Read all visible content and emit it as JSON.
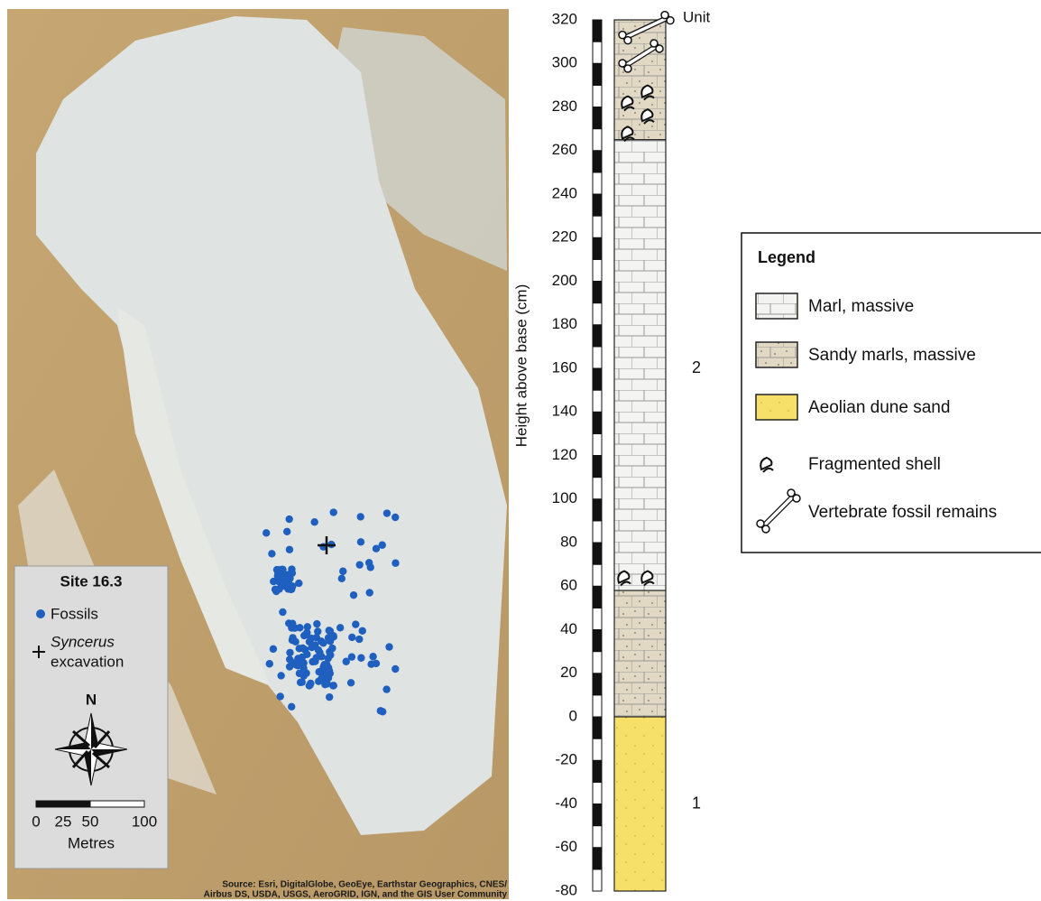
{
  "map": {
    "legend_title": "Site 16.3",
    "legend_items": [
      "Fossils"
    ],
    "excavation_label": [
      "Syncerus",
      "excavation"
    ],
    "north": "N",
    "scale": {
      "ticks": [
        0,
        25,
        50,
        100
      ],
      "unit": "Metres"
    },
    "source": [
      "Source: Esri, DigitalGlobe, GeoEye, Earthstar Geographics, CNES/",
      "Airbus DS, USDA, USGS, AeroGRID, IGN, and the GIS User Community"
    ]
  },
  "column": {
    "axis_label": "Height above base (cm)",
    "ylim": [
      -80,
      320
    ],
    "yticks": [
      -80,
      -60,
      -40,
      -20,
      0,
      20,
      40,
      60,
      80,
      100,
      120,
      140,
      160,
      180,
      200,
      220,
      240,
      260,
      280,
      300,
      320
    ],
    "unit_header": "Unit",
    "units": [
      {
        "label": "2",
        "range": [
          0,
          320
        ]
      },
      {
        "label": "1",
        "range": [
          -80,
          0
        ]
      }
    ]
  },
  "legend": {
    "title": "Legend",
    "items": [
      {
        "label": "Marl, massive",
        "ranges": [
          [
            58,
            265
          ]
        ]
      },
      {
        "label": "Sandy marls, massive",
        "ranges": [
          [
            0,
            58
          ],
          [
            265,
            320
          ]
        ]
      },
      {
        "label": "Aeolian dune sand",
        "ranges": [
          [
            -80,
            0
          ]
        ]
      },
      {
        "label": "Fragmented shell",
        "heights": [
          64,
          64,
          268,
          276,
          282,
          287
        ]
      },
      {
        "label": "Vertebrate fossil remains",
        "heights": [
          303,
          316
        ]
      }
    ]
  }
}
